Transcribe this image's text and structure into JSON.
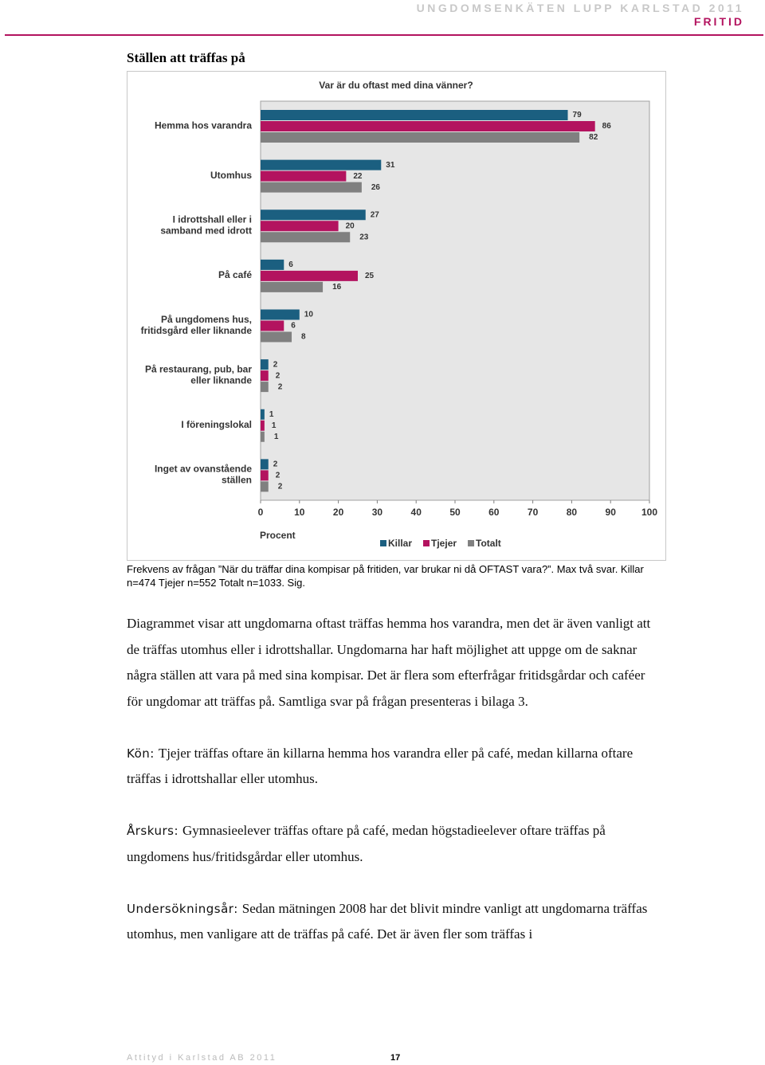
{
  "header": {
    "title": "UNGDOMSENKÄTEN LUPP KARLSTAD 2011",
    "section": "FRITID"
  },
  "heading": "Ställen att träffas på",
  "chart_data": {
    "type": "hbar",
    "title": "Var är du oftast  med dina vänner?",
    "categories": [
      "Hemma hos varandra",
      "Utomhus",
      "I idrottshall eller i\nsamband med idrott",
      "På café",
      "På ungdomens hus,\nfritidsgård eller liknande",
      "På restaurang, pub, bar\neller liknande",
      "I föreningslokal",
      "Inget av ovanstående\nställen"
    ],
    "series": [
      {
        "name": "Killar",
        "color": "#1b5f80",
        "values": [
          79,
          31,
          27,
          6,
          10,
          2,
          1,
          2
        ]
      },
      {
        "name": "Tjejer",
        "color": "#b3135f",
        "values": [
          86,
          22,
          20,
          25,
          6,
          2,
          1,
          2
        ]
      },
      {
        "name": "Totalt",
        "color": "#808080",
        "values": [
          82,
          26,
          23,
          16,
          8,
          2,
          1,
          2
        ]
      }
    ],
    "xlim": [
      0,
      100
    ],
    "xticks": [
      0,
      10,
      20,
      30,
      40,
      50,
      60,
      70,
      80,
      90,
      100
    ],
    "xlabel": "Procent",
    "legend": "bottom-right"
  },
  "caption": "Frekvens av frågan ”När du träffar dina kompisar på fritiden, var brukar ni då OFTAST vara?”. Max två svar. Killar n=474 Tjejer n=552 Totalt n=1033. Sig.",
  "paragraphs": [
    {
      "text": "Diagrammet visar att ungdomarna oftast träffas hemma hos varandra, men det är även vanligt att de träffas utomhus eller i idrottshallar. Ungdomarna har haft möjlighet att uppge om de saknar några ställen att vara på med sina kompisar. Det är flera som efterfrågar fritidsgårdar och caféer för ungdomar att träffas på. Samtliga svar på frågan presenteras i bilaga 3."
    },
    {
      "lead": "Kön:",
      "text": "Tjejer träffas oftare än killarna hemma hos varandra eller på café, medan killarna oftare träffas i idrottshallar eller utomhus."
    },
    {
      "lead": "Årskurs:",
      "text": "Gymnasieelever träffas oftare på café, medan högstadieelever oftare träffas på ungdomens hus/fritidsgårdar eller utomhus."
    },
    {
      "lead": "Undersökningsår:",
      "text": "Sedan mätningen 2008 har det blivit mindre vanligt att ungdomarna träffas utomhus, men vanligare att de träffas på café. Det är även fler som träffas i"
    }
  ],
  "footer": {
    "company": "Attityd i Karlstad AB 2011",
    "page": "17"
  }
}
